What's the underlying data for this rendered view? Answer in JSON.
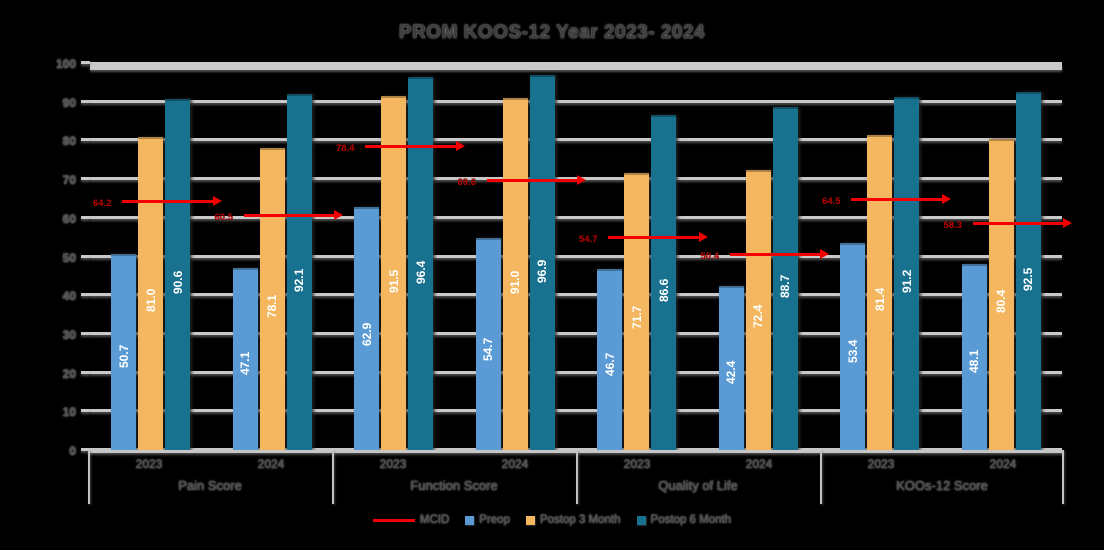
{
  "title": "PROM KOOS-12 Year 2023- 2024",
  "y_axis": {
    "min": 0,
    "max": 100,
    "step": 10,
    "tick_labels": [
      "0",
      "10",
      "20",
      "30",
      "40",
      "50",
      "60",
      "70",
      "80",
      "90",
      "100"
    ]
  },
  "legend": {
    "items": [
      {
        "label": "MCID",
        "type": "line",
        "color": "#f40000"
      },
      {
        "label": "Preop",
        "type": "square",
        "color": "#5b9bd5"
      },
      {
        "label": "Postop 3 Month",
        "type": "square",
        "color": "#f4b75f"
      },
      {
        "label": "Postop 6 Month",
        "type": "square",
        "color": "#17718f"
      }
    ]
  },
  "colors": {
    "preop_bar": "#5b9bd5",
    "postop3_bar": "#f4b75f",
    "postop6_bar": "#17718f",
    "mcid_line": "#f40000",
    "mcid_label": "#c00000",
    "gridline": "#c9c9c9",
    "axis_text": "#474747",
    "bar_value_text": "#ffffff"
  },
  "chart_data": {
    "type": "bar",
    "title": "PROM KOOS-12 Year 2023- 2024",
    "ylim": [
      0,
      100
    ],
    "grid": "horizontal",
    "legend_position": "bottom",
    "series_names": [
      "Preop",
      "Postop 3 Month",
      "Postop 6 Month"
    ],
    "reference_series": "MCID",
    "groups": [
      {
        "label": "Pain Score",
        "cells": [
          {
            "year": "2023",
            "values": [
              50.7,
              81.0,
              90.6
            ],
            "mcid": 64.2
          },
          {
            "year": "2024",
            "values": [
              47.1,
              78.1,
              92.1
            ],
            "mcid": 60.5
          }
        ]
      },
      {
        "label": "Function Score",
        "cells": [
          {
            "year": "2023",
            "values": [
              62.9,
              91.5,
              96.4
            ],
            "mcid": 78.4
          },
          {
            "year": "2024",
            "values": [
              54.7,
              91.0,
              96.9
            ],
            "mcid": 69.6
          }
        ]
      },
      {
        "label": "Quality of Life",
        "cells": [
          {
            "year": "2023",
            "values": [
              46.7,
              71.7,
              86.6
            ],
            "mcid": 54.7
          },
          {
            "year": "2024",
            "values": [
              42.4,
              72.4,
              88.7
            ],
            "mcid": 50.4
          }
        ]
      },
      {
        "label": "KOOs-12 Score",
        "cells": [
          {
            "year": "2023",
            "values": [
              53.4,
              81.4,
              91.2
            ],
            "mcid": 64.5
          },
          {
            "year": "2024",
            "values": [
              48.1,
              80.4,
              92.5
            ],
            "mcid": 58.3
          }
        ]
      }
    ]
  }
}
